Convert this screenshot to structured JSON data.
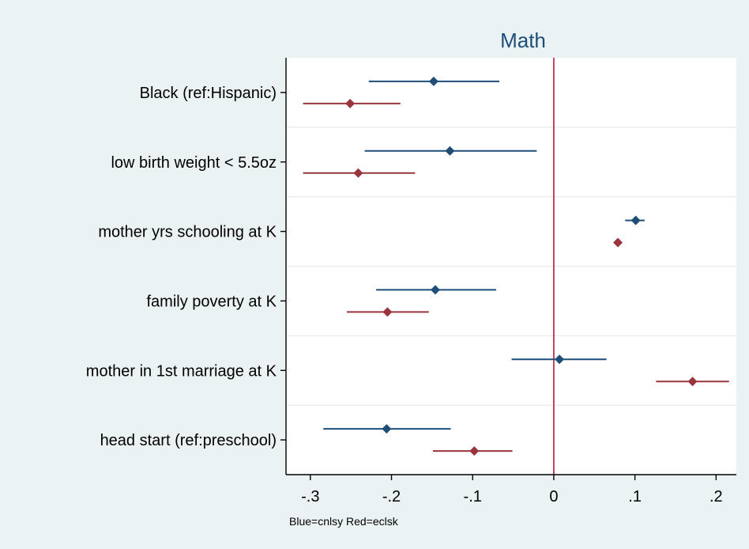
{
  "chart_data": {
    "type": "scatter",
    "title": "Math",
    "note": "Blue=cnlsy Red=eclsk",
    "xlim": [
      -0.33,
      0.225
    ],
    "x_ticks": [
      {
        "value": -0.3,
        "label": "-.3"
      },
      {
        "value": -0.2,
        "label": "-.2"
      },
      {
        "value": -0.1,
        "label": "-.1"
      },
      {
        "value": 0,
        "label": "0"
      },
      {
        "value": 0.1,
        "label": ".1"
      },
      {
        "value": 0.2,
        "label": ".2"
      }
    ],
    "reference_line": 0,
    "categories": [
      "Black (ref:Hispanic)",
      "low birth weight < 5.5oz",
      "mother yrs schooling at K",
      "family poverty at K",
      "mother in 1st marriage at K",
      "head start (ref:preschool)"
    ],
    "series": [
      {
        "color": "#1f4e79",
        "estimates": [
          -0.148,
          -0.128,
          0.101,
          -0.146,
          0.007,
          -0.206
        ],
        "ci_low": [
          -0.228,
          -0.233,
          0.088,
          -0.219,
          -0.052,
          -0.284
        ],
        "ci_high": [
          -0.067,
          -0.021,
          0.112,
          -0.071,
          0.065,
          -0.127
        ]
      },
      {
        "color": "#99363d",
        "estimates": [
          -0.251,
          -0.241,
          0.079,
          -0.205,
          0.171,
          -0.098
        ],
        "ci_low": [
          -0.309,
          -0.309,
          0.079,
          -0.255,
          0.126,
          -0.149
        ],
        "ci_high": [
          -0.189,
          -0.171,
          0.079,
          -0.154,
          0.216,
          -0.051
        ]
      }
    ],
    "colors": {
      "background": "#eaf2f3",
      "plot_background": "#ffffff",
      "grid": "#e4ecec",
      "reference_line": "#c0304a",
      "axis": "#000000",
      "text": "#000000",
      "title": "#1f4e79"
    }
  }
}
